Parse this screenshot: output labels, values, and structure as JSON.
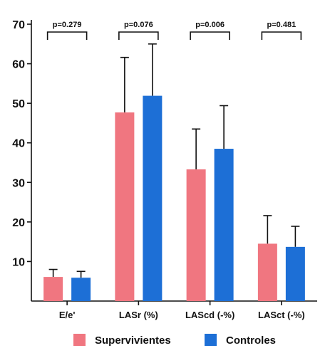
{
  "chart_data": {
    "type": "bar",
    "categories": [
      "E/e'",
      "LASr (%)",
      "LAScd (-%)",
      "LASct (-%)"
    ],
    "series": [
      {
        "name": "Supervivientes",
        "color": "#f07680",
        "values": [
          6.1,
          47.7,
          33.3,
          14.5
        ],
        "error": [
          1.9,
          13.9,
          10.2,
          7.1
        ]
      },
      {
        "name": "Controles",
        "color": "#1d6fd6",
        "values": [
          5.9,
          51.9,
          38.5,
          13.7
        ],
        "error": [
          1.6,
          13.1,
          10.9,
          5.2
        ]
      }
    ],
    "annotations": [
      "p=0.279",
      "p=0.076",
      "p=0.006",
      "p=0.481"
    ],
    "yticks": [
      10,
      20,
      30,
      40,
      50,
      60,
      70
    ],
    "ylim": [
      0,
      70
    ],
    "title": "",
    "xlabel": "",
    "ylabel": "",
    "legend_position": "bottom",
    "grid": false
  }
}
